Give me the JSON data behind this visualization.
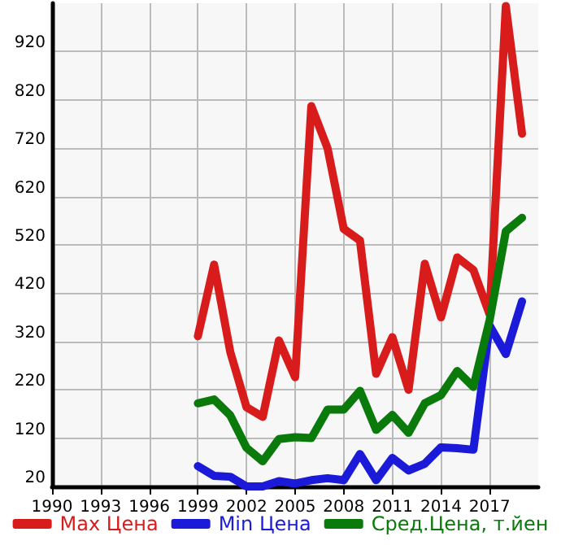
{
  "chart_data": {
    "type": "line",
    "x": [
      1999,
      2000,
      2001,
      2002,
      2003,
      2004,
      2005,
      2006,
      2007,
      2008,
      2009,
      2010,
      2011,
      2012,
      2013,
      2014,
      2015,
      2016,
      2017,
      2018,
      2019
    ],
    "series": [
      {
        "name": "Max Цена",
        "color": "#d81c1c",
        "values": [
          331,
          479,
          298,
          184,
          164,
          322,
          246,
          807,
          720,
          553,
          529,
          253,
          329,
          220,
          481,
          370,
          494,
          468,
          376,
          1014,
          750
        ]
      },
      {
        "name": "Min Цена",
        "color": "#1a1ad8",
        "values": [
          62,
          42,
          40,
          20,
          20,
          31,
          26,
          33,
          37,
          33,
          87,
          33,
          79,
          53,
          67,
          101,
          99,
          96,
          353,
          294,
          403
        ]
      },
      {
        "name": "Сред.Цена, т.йен",
        "color": "#0a7a0a",
        "values": [
          192,
          200,
          167,
          100,
          72,
          118,
          122,
          120,
          179,
          179,
          218,
          137,
          168,
          131,
          192,
          209,
          259,
          226,
          364,
          548,
          576
        ]
      }
    ],
    "xlim": [
      1990,
      2020
    ],
    "xticks": [
      1990,
      1993,
      1996,
      1999,
      2002,
      2005,
      2008,
      2011,
      2014,
      2017
    ],
    "ylim": [
      20,
      1020
    ],
    "yticks": [
      20,
      120,
      220,
      320,
      420,
      520,
      620,
      720,
      820,
      920
    ],
    "grid": true,
    "legend": "bottom",
    "marker": "none",
    "line_style": "solid"
  }
}
